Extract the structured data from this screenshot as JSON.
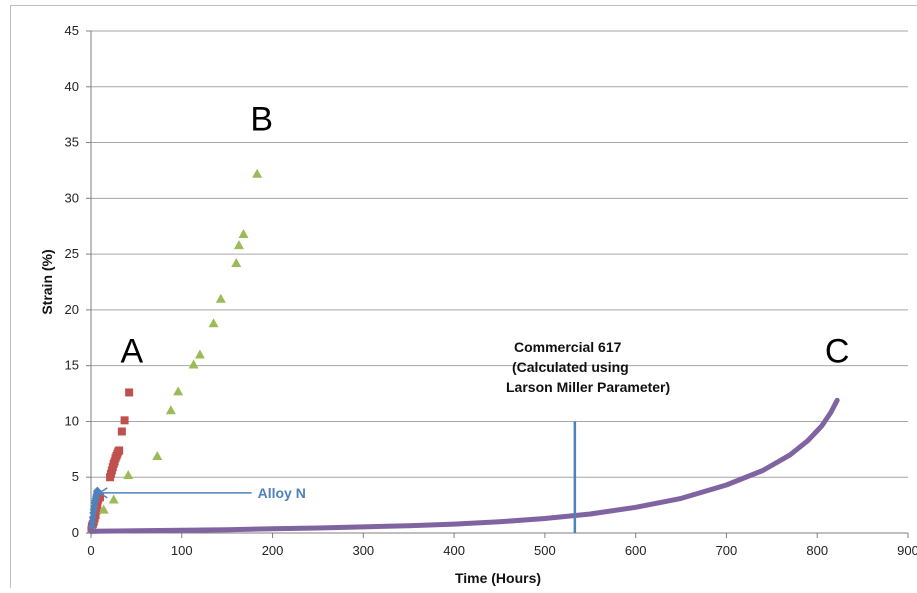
{
  "chart_data": {
    "type": "scatter",
    "xlabel": "Time (Hours)",
    "ylabel": "Strain (%)",
    "xlim": [
      0,
      900
    ],
    "ylim": [
      0,
      45
    ],
    "xticks": [
      "0",
      "100",
      "200",
      "300",
      "400",
      "500",
      "600",
      "700",
      "800",
      "900"
    ],
    "yticks": [
      "0",
      "5",
      "10",
      "15",
      "20",
      "25",
      "30",
      "35",
      "40",
      "45"
    ],
    "grid": "horizontal",
    "series": [
      {
        "name": "",
        "marker": "square",
        "color": "#c0504d",
        "points": [
          [
            0.5,
            0.3
          ],
          [
            1,
            0.6
          ],
          [
            2,
            0.8
          ],
          [
            3,
            1.0
          ],
          [
            4,
            1.3
          ],
          [
            5,
            1.6
          ],
          [
            6,
            2.0
          ],
          [
            7,
            2.5
          ],
          [
            8,
            3.0
          ],
          [
            10,
            3.2
          ],
          [
            21,
            5.0
          ],
          [
            22,
            5.3
          ],
          [
            23,
            5.6
          ],
          [
            24,
            5.9
          ],
          [
            25,
            6.2
          ],
          [
            26,
            6.4
          ],
          [
            27,
            6.7
          ],
          [
            28,
            6.9
          ],
          [
            29,
            7.1
          ],
          [
            30,
            7.3
          ],
          [
            31,
            7.4
          ],
          [
            34,
            9.1
          ],
          [
            37,
            10.1
          ],
          [
            42,
            12.6
          ]
        ]
      },
      {
        "name": "",
        "marker": "triangle",
        "color": "#9bbb59",
        "points": [
          [
            2,
            0.3
          ],
          [
            14,
            2.1
          ],
          [
            25,
            3.0
          ],
          [
            41,
            5.2
          ],
          [
            73,
            6.9
          ],
          [
            88,
            11.0
          ],
          [
            96,
            12.7
          ],
          [
            113,
            15.1
          ],
          [
            120,
            16.0
          ],
          [
            135,
            18.8
          ],
          [
            143,
            21.0
          ],
          [
            160,
            24.2
          ],
          [
            163,
            25.8
          ],
          [
            168,
            26.8
          ],
          [
            183,
            32.2
          ]
        ]
      },
      {
        "name": "",
        "marker": "diamond",
        "color": "#4f81bd",
        "points": [
          [
            0.5,
            0.2
          ],
          [
            1,
            0.6
          ],
          [
            1.5,
            1.0
          ],
          [
            2,
            1.4
          ],
          [
            2.5,
            1.8
          ],
          [
            3,
            2.1
          ],
          [
            3.5,
            2.4
          ],
          [
            4,
            2.7
          ],
          [
            4.5,
            2.9
          ],
          [
            5,
            3.1
          ],
          [
            5.5,
            3.3
          ],
          [
            6,
            3.5
          ],
          [
            6.5,
            3.7
          ],
          [
            7,
            3.8
          ]
        ]
      },
      {
        "name": "",
        "marker": "line",
        "color": "#8064a2",
        "points": [
          [
            0,
            0.15
          ],
          [
            50,
            0.2
          ],
          [
            100,
            0.25
          ],
          [
            150,
            0.3
          ],
          [
            200,
            0.38
          ],
          [
            250,
            0.45
          ],
          [
            300,
            0.55
          ],
          [
            350,
            0.65
          ],
          [
            400,
            0.8
          ],
          [
            450,
            1.0
          ],
          [
            500,
            1.3
          ],
          [
            550,
            1.7
          ],
          [
            600,
            2.3
          ],
          [
            650,
            3.1
          ],
          [
            700,
            4.3
          ],
          [
            740,
            5.6
          ],
          [
            770,
            7.0
          ],
          [
            790,
            8.3
          ],
          [
            805,
            9.6
          ],
          [
            815,
            10.8
          ],
          [
            822,
            11.9
          ]
        ]
      }
    ],
    "reference_line": {
      "label": "Commercial 617 (Calculated using Larson Miller Parameter)",
      "x": 533,
      "y_range": [
        0,
        10
      ],
      "color": "#4f81bd"
    },
    "annotations": [
      {
        "text": "A",
        "x": 45,
        "y": 15.3
      },
      {
        "text": "B",
        "x": 188,
        "y": 36.1
      },
      {
        "text": "C",
        "x": 822,
        "y": 15.3
      }
    ],
    "alloy_label": {
      "text": "Alloy N",
      "color": "#4f81bd",
      "x": 91,
      "y": 3.6,
      "arrow_to": [
        7,
        3.6
      ]
    },
    "ref_text_lines": [
      "Commercial 617",
      "(Calculated using",
      "Larson Miller Parameter)"
    ]
  }
}
